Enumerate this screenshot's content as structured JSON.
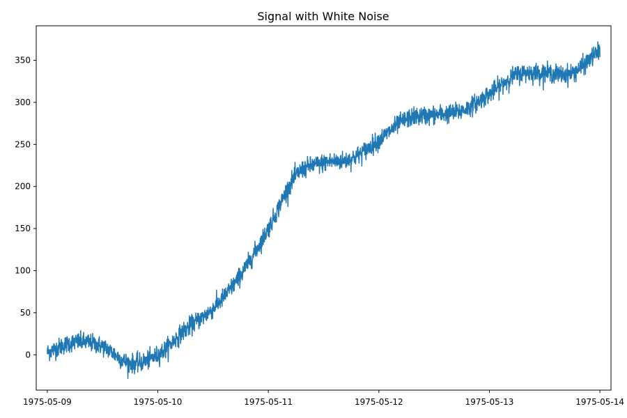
{
  "chart_data": {
    "type": "line",
    "title": "Signal with White Noise",
    "xlabel": "",
    "ylabel": "",
    "xlim": [
      "1975-05-08T21:36",
      "1975-05-14T02:24"
    ],
    "ylim": [
      -42,
      391
    ],
    "x_ticks": [
      "1975-05-09",
      "1975-05-10",
      "1975-05-11",
      "1975-05-12",
      "1975-05-13",
      "1975-05-14"
    ],
    "y_ticks": [
      0,
      50,
      100,
      150,
      200,
      250,
      300,
      350
    ],
    "grid": false,
    "legend": "none",
    "series_color": "#1f77b4",
    "noise_amplitude": 6,
    "series": [
      {
        "x": [
          "1975-05-09T00:00",
          "1975-05-09T06:00",
          "1975-05-09T12:00",
          "1975-05-09T18:00",
          "1975-05-10T00:00",
          "1975-05-10T06:00",
          "1975-05-10T12:00",
          "1975-05-10T18:00",
          "1975-05-11T00:00",
          "1975-05-11T06:00",
          "1975-05-11T12:00",
          "1975-05-11T18:00",
          "1975-05-12T00:00",
          "1975-05-12T06:00",
          "1975-05-12T12:00",
          "1975-05-12T18:00",
          "1975-05-13T00:00",
          "1975-05-13T06:00",
          "1975-05-13T12:00",
          "1975-05-13T18:00",
          "1975-05-14T00:00"
        ],
        "values": [
          3,
          15,
          10,
          -10,
          0,
          30,
          55,
          95,
          150,
          213,
          228,
          233,
          255,
          280,
          285,
          290,
          310,
          333,
          335,
          335,
          362
        ]
      }
    ]
  }
}
